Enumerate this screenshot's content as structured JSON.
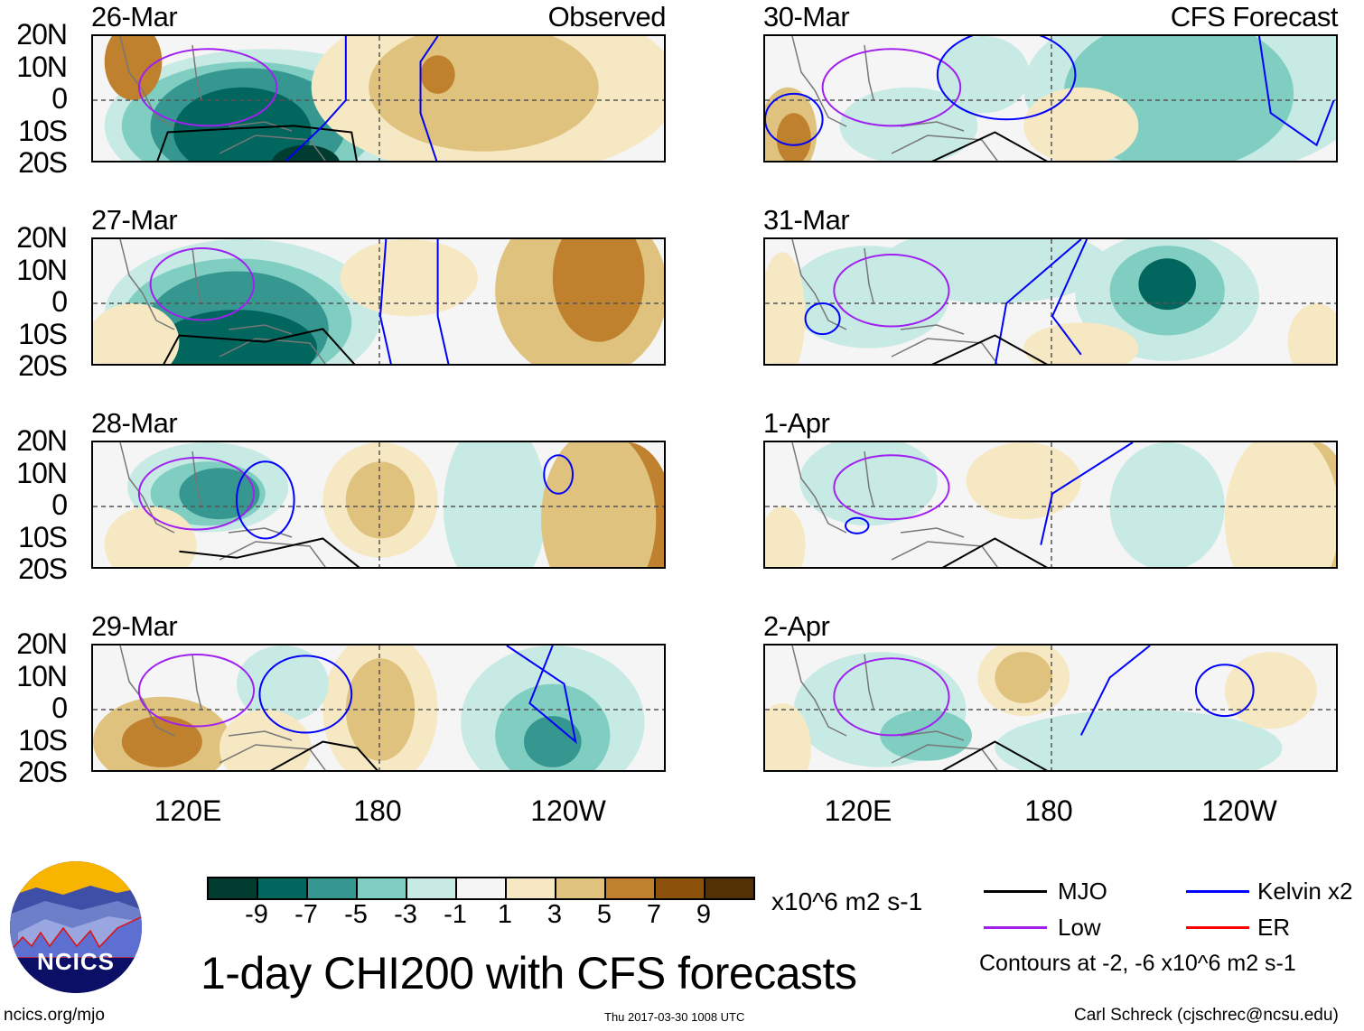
{
  "panels": [
    {
      "date": "26-Mar",
      "tag": "Observed"
    },
    {
      "date": "27-Mar",
      "tag": ""
    },
    {
      "date": "28-Mar",
      "tag": ""
    },
    {
      "date": "29-Mar",
      "tag": ""
    },
    {
      "date": "30-Mar",
      "tag": "CFS Forecast"
    },
    {
      "date": "31-Mar",
      "tag": ""
    },
    {
      "date": "1-Apr",
      "tag": ""
    },
    {
      "date": "2-Apr",
      "tag": ""
    }
  ],
  "y_ticks": [
    "20N",
    "10N",
    "0",
    "10S",
    "20S"
  ],
  "x_ticks": [
    "120E",
    "180",
    "120W"
  ],
  "colorbar": {
    "colors": [
      "#003c30",
      "#01665e",
      "#35978f",
      "#80cdc1",
      "#c7eae5",
      "#f5f5f5",
      "#f6e8c3",
      "#dfc27d",
      "#bf812d",
      "#8c510a",
      "#543005"
    ],
    "ticks": [
      "-9",
      "-7",
      "-5",
      "-3",
      "-1",
      "1",
      "3",
      "5",
      "7",
      "9"
    ],
    "units": "x10^6 m2 s-1"
  },
  "title": "1-day CHI200 with CFS forecasts",
  "legend": {
    "items": [
      {
        "label": "MJO",
        "color": "#000000"
      },
      {
        "label": "Kelvin x2",
        "color": "#0000ff"
      },
      {
        "label": "Low",
        "color": "#a020f0"
      },
      {
        "label": "ER",
        "color": "#ff0000"
      }
    ],
    "note": "Contours at -2, -6 x10^6 m2 s-1"
  },
  "logo": {
    "text": "NCICS"
  },
  "footer": {
    "url": "ncics.org/mjo",
    "timestamp": "Thu 2017-03-30 1008 UTC",
    "credit": "Carl Schreck (cjschrec@ncsu.edu)"
  }
}
